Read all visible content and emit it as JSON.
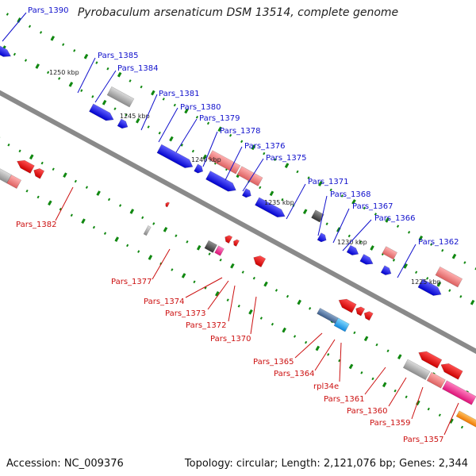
{
  "title": "Pyrobaculum arsenaticum DSM 13514, complete genome",
  "accession": "Accession: NC_009376",
  "summary": "Topology: circular; Length: 2,121,076 bp; Genes: 2,344",
  "scale_ticks": [
    {
      "label": "1250 kbp"
    },
    {
      "label": "1245 kbp"
    },
    {
      "label": "1240 kbp"
    },
    {
      "label": "1235 kbp"
    },
    {
      "label": "1230 kbp"
    },
    {
      "label": "1225 kbp"
    }
  ],
  "gene_labels_top": [
    {
      "text": "Pars_1390"
    },
    {
      "text": "Pars_1385"
    },
    {
      "text": "Pars_1384"
    },
    {
      "text": "Pars_1381"
    },
    {
      "text": "Pars_1380"
    },
    {
      "text": "Pars_1379"
    },
    {
      "text": "Pars_1378"
    },
    {
      "text": "Pars_1376"
    },
    {
      "text": "Pars_1375"
    },
    {
      "text": "Pars_1371"
    },
    {
      "text": "Pars_1368"
    },
    {
      "text": "Pars_1367"
    },
    {
      "text": "Pars_1366"
    },
    {
      "text": "Pars_1362"
    }
  ],
  "gene_labels_bottom": [
    {
      "text": "Pars_1382"
    },
    {
      "text": "Pars_1377"
    },
    {
      "text": "Pars_1374"
    },
    {
      "text": "Pars_1373"
    },
    {
      "text": "Pars_1372"
    },
    {
      "text": "Pars_1370"
    },
    {
      "text": "Pars_1365"
    },
    {
      "text": "Pars_1364"
    },
    {
      "text": "rpl34e"
    },
    {
      "text": "Pars_1361"
    },
    {
      "text": "Pars_1360"
    },
    {
      "text": "Pars_1359"
    },
    {
      "text": "Pars_1357"
    }
  ],
  "colors": {
    "top_label": "#1010cc",
    "bottom_label": "#cc1010",
    "backbone": "#8a8a8a",
    "tick": "#118811",
    "forward": "#1a1aee",
    "reverse": "#ee1a1a",
    "pink": "#ee8080",
    "gray": "#a8a8a8",
    "dark": "#555555",
    "purple": "#6a5acd",
    "magenta": "#ff3399",
    "cyan": "#33aaff",
    "orange": "#ff9900"
  }
}
